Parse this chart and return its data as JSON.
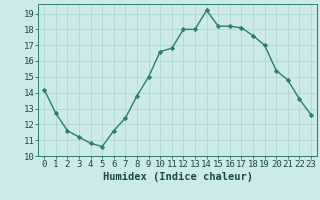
{
  "x": [
    0,
    1,
    2,
    3,
    4,
    5,
    6,
    7,
    8,
    9,
    10,
    11,
    12,
    13,
    14,
    15,
    16,
    17,
    18,
    19,
    20,
    21,
    22,
    23
  ],
  "y": [
    14.2,
    12.7,
    11.6,
    11.2,
    10.8,
    10.6,
    11.6,
    12.4,
    13.8,
    15.0,
    16.6,
    16.8,
    18.0,
    18.0,
    19.2,
    18.2,
    18.2,
    18.1,
    17.6,
    17.0,
    15.4,
    14.8,
    13.6,
    12.6
  ],
  "line_color": "#2e7d6e",
  "marker": "D",
  "marker_size": 2.2,
  "bg_color": "#cceae7",
  "grid_color": "#aad4d0",
  "xlabel": "Humidex (Indice chaleur)",
  "ylabel": "",
  "title": "",
  "xlim": [
    -0.5,
    23.5
  ],
  "ylim": [
    10,
    19.6
  ],
  "yticks": [
    10,
    11,
    12,
    13,
    14,
    15,
    16,
    17,
    18,
    19
  ],
  "xticks": [
    0,
    1,
    2,
    3,
    4,
    5,
    6,
    7,
    8,
    9,
    10,
    11,
    12,
    13,
    14,
    15,
    16,
    17,
    18,
    19,
    20,
    21,
    22,
    23
  ],
  "line_width": 1.0,
  "xlabel_fontsize": 7.5,
  "tick_fontsize": 6.5,
  "font_color": "#1a4a45",
  "spine_color": "#2e7d6e"
}
